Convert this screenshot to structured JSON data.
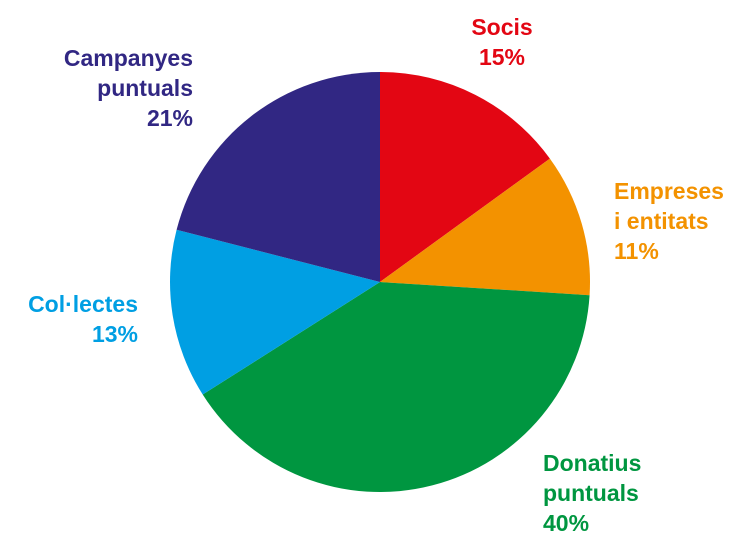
{
  "chart_data": {
    "type": "pie",
    "start_angle_deg": 0,
    "direction": "clockwise",
    "slices": [
      {
        "name": "Socis",
        "lines": [
          "Socis"
        ],
        "value": 15,
        "label": "15%",
        "color": "#e30613"
      },
      {
        "name": "Empreses i entitats",
        "lines": [
          "Empreses",
          "i entitats"
        ],
        "value": 11,
        "label": "11%",
        "color": "#f39200"
      },
      {
        "name": "Donatius puntuals",
        "lines": [
          "Donatius",
          "puntuals"
        ],
        "value": 40,
        "label": "40%",
        "color": "#009640"
      },
      {
        "name": "Col·lectes",
        "lines": [
          "Col·lectes"
        ],
        "value": 13,
        "label": "13%",
        "color": "#009fe3"
      },
      {
        "name": "Campanyes puntuals",
        "lines": [
          "Campanyes",
          "puntuals"
        ],
        "value": 21,
        "label": "21%",
        "color": "#312783"
      }
    ]
  }
}
